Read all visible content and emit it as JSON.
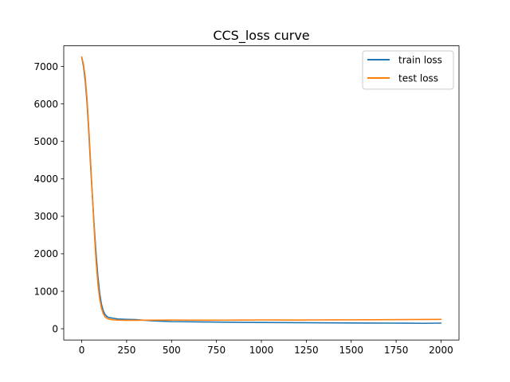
{
  "chart_data": {
    "type": "line",
    "title": "CCS_loss curve",
    "xlabel": "",
    "ylabel": "",
    "xlim": [
      -100,
      2100
    ],
    "ylim": [
      -300,
      7550
    ],
    "xticks": [
      0,
      250,
      500,
      750,
      1000,
      1250,
      1500,
      1750,
      2000
    ],
    "yticks": [
      0,
      1000,
      2000,
      3000,
      4000,
      5000,
      6000,
      7000
    ],
    "xtick_labels": [
      "0",
      "250",
      "500",
      "750",
      "1000",
      "1250",
      "1500",
      "1750",
      "2000"
    ],
    "ytick_labels": [
      "0",
      "1000",
      "2000",
      "3000",
      "4000",
      "5000",
      "6000",
      "7000"
    ],
    "grid": false,
    "legend": "top-right",
    "series": [
      {
        "name": "train loss",
        "color": "#1f77b4",
        "x": [
          0,
          10,
          20,
          30,
          40,
          50,
          60,
          70,
          80,
          90,
          100,
          110,
          120,
          130,
          140,
          150,
          175,
          200,
          250,
          300,
          350,
          400,
          500,
          600,
          700,
          800,
          900,
          1000,
          1100,
          1200,
          1300,
          1400,
          1500,
          1600,
          1700,
          1800,
          1900,
          2000
        ],
        "values": [
          7250,
          7000,
          6600,
          6000,
          5200,
          4300,
          3500,
          2700,
          2000,
          1400,
          950,
          650,
          480,
          380,
          330,
          300,
          280,
          260,
          250,
          245,
          225,
          210,
          190,
          185,
          180,
          175,
          170,
          168,
          165,
          162,
          160,
          158,
          155,
          152,
          150,
          148,
          145,
          150
        ]
      },
      {
        "name": "test loss",
        "color": "#ff7f0e",
        "x": [
          0,
          10,
          20,
          30,
          40,
          50,
          60,
          70,
          80,
          90,
          100,
          110,
          120,
          130,
          140,
          150,
          175,
          200,
          250,
          300,
          350,
          400,
          500,
          600,
          700,
          800,
          900,
          1000,
          1100,
          1200,
          1300,
          1400,
          1500,
          1600,
          1700,
          1800,
          1900,
          2000
        ],
        "values": [
          7250,
          7050,
          6700,
          6100,
          5300,
          4400,
          3500,
          2600,
          1800,
          1200,
          800,
          550,
          400,
          320,
          280,
          260,
          240,
          230,
          225,
          225,
          228,
          230,
          232,
          230,
          228,
          230,
          232,
          235,
          233,
          232,
          235,
          236,
          238,
          240,
          242,
          245,
          248,
          250
        ]
      }
    ]
  }
}
